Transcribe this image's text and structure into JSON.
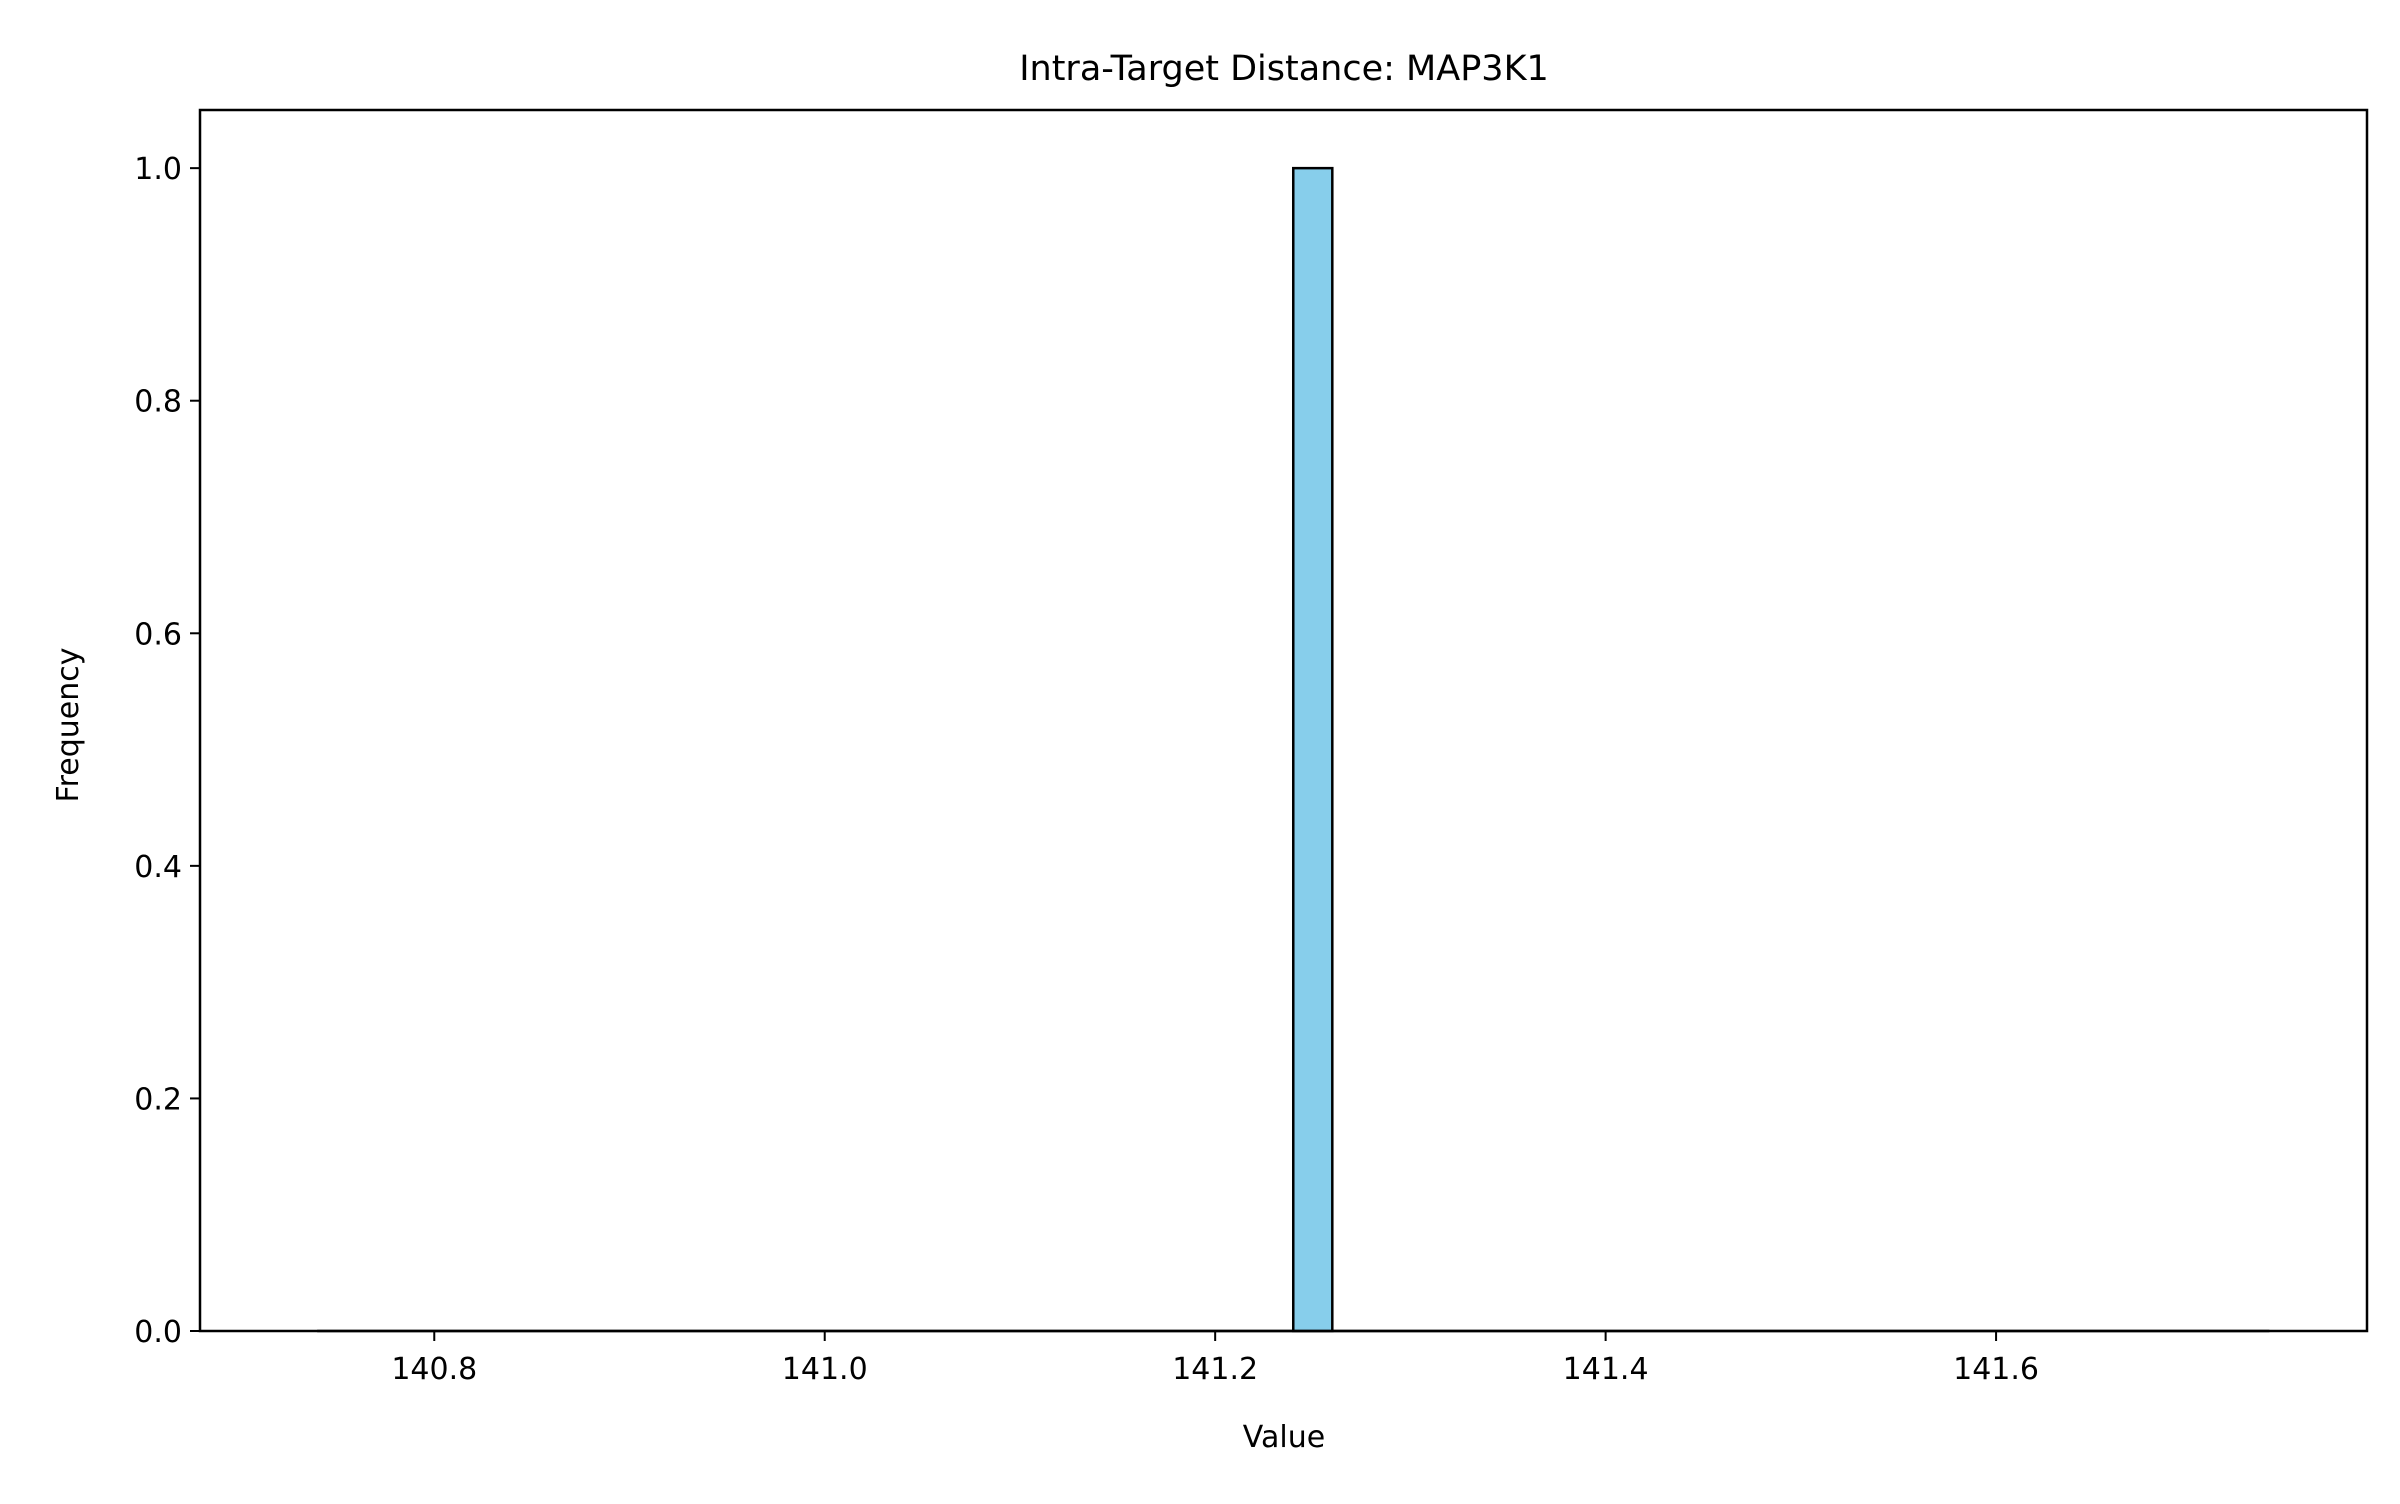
{
  "chart_data": {
    "type": "histogram",
    "title": "Intra-Target Distance: MAP3K1",
    "xlabel": "Value",
    "ylabel": "Frequency",
    "xlim": [
      140.68,
      141.79
    ],
    "ylim": [
      0,
      1.05
    ],
    "x_ticks": [
      140.8,
      141.0,
      141.2,
      141.4,
      141.6
    ],
    "x_tick_labels": [
      "140.8",
      "141.0",
      "141.2",
      "141.4",
      "141.6"
    ],
    "y_ticks": [
      0.0,
      0.2,
      0.4,
      0.6,
      0.8,
      1.0
    ],
    "y_tick_labels": [
      "0.0",
      "0.2",
      "0.4",
      "0.6",
      "0.8",
      "1.0"
    ],
    "bins_range": [
      140.74,
      141.74
    ],
    "bin_count": 50,
    "bars": [
      {
        "x0": 141.24,
        "x1": 141.26,
        "value": 1
      }
    ],
    "bar_fill": "#87ceeb",
    "bar_edge": "#000000",
    "grid": false,
    "legend": "none"
  }
}
